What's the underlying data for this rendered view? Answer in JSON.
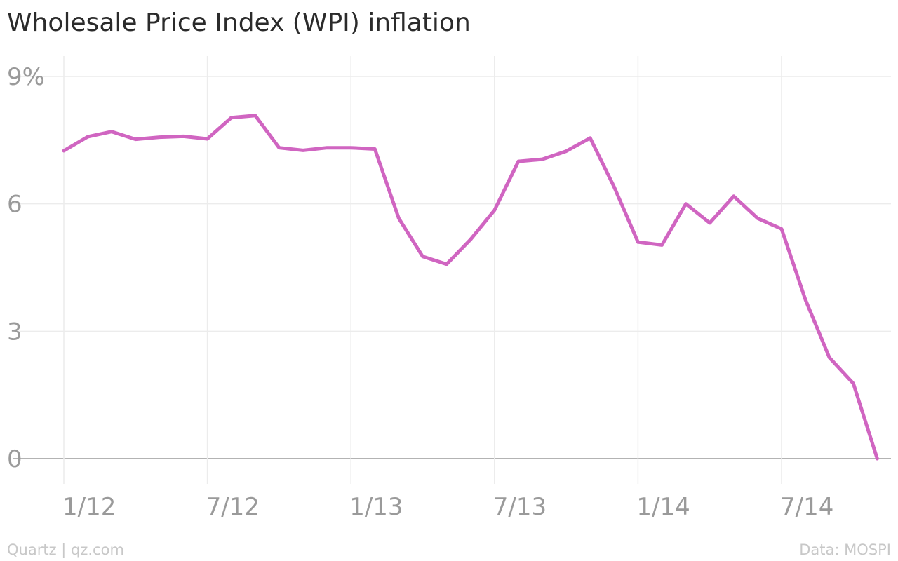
{
  "title": "Wholesale Price Index (WPI) inflation",
  "footer": {
    "credit": "Quartz | qz.com",
    "source": "Data: MOSPI"
  },
  "colors": {
    "line": "#d065c1",
    "grid": "#ececec",
    "zero_line": "#9a9a9a",
    "tick_text": "#9a9a9a"
  },
  "chart_data": {
    "type": "line",
    "title": "Wholesale Price Index (WPI) inflation",
    "xlabel": "",
    "ylabel": "",
    "ylim": [
      0,
      9
    ],
    "yticks": [
      {
        "value": 9,
        "label": "9%"
      },
      {
        "value": 6,
        "label": "6"
      },
      {
        "value": 3,
        "label": "3"
      },
      {
        "value": 0,
        "label": "0"
      }
    ],
    "xticks": [
      {
        "value": "2012-01",
        "label": "1/12"
      },
      {
        "value": "2012-07",
        "label": "7/12"
      },
      {
        "value": "2013-01",
        "label": "1/13"
      },
      {
        "value": "2013-07",
        "label": "7/13"
      },
      {
        "value": "2014-01",
        "label": "1/14"
      },
      {
        "value": "2014-07",
        "label": "7/14"
      }
    ],
    "grid": true,
    "x": [
      "2012-01",
      "2012-02",
      "2012-03",
      "2012-04",
      "2012-05",
      "2012-06",
      "2012-07",
      "2012-08",
      "2012-09",
      "2012-10",
      "2012-11",
      "2012-12",
      "2013-01",
      "2013-02",
      "2013-03",
      "2013-04",
      "2013-05",
      "2013-06",
      "2013-07",
      "2013-08",
      "2013-09",
      "2013-10",
      "2013-11",
      "2013-12",
      "2014-01",
      "2014-02",
      "2014-03",
      "2014-04",
      "2014-05",
      "2014-06",
      "2014-07",
      "2014-08",
      "2014-09",
      "2014-10",
      "2014-11"
    ],
    "series": [
      {
        "values": [
          7.25,
          7.58,
          7.7,
          7.52,
          7.57,
          7.59,
          7.53,
          8.03,
          8.08,
          7.32,
          7.26,
          7.32,
          7.32,
          7.29,
          5.66,
          4.76,
          4.58,
          5.16,
          5.85,
          7.0,
          7.05,
          7.24,
          7.55,
          6.4,
          5.1,
          5.03,
          6.0,
          5.55,
          6.18,
          5.66,
          5.41,
          3.74,
          2.38,
          1.77,
          0.0
        ]
      }
    ]
  }
}
